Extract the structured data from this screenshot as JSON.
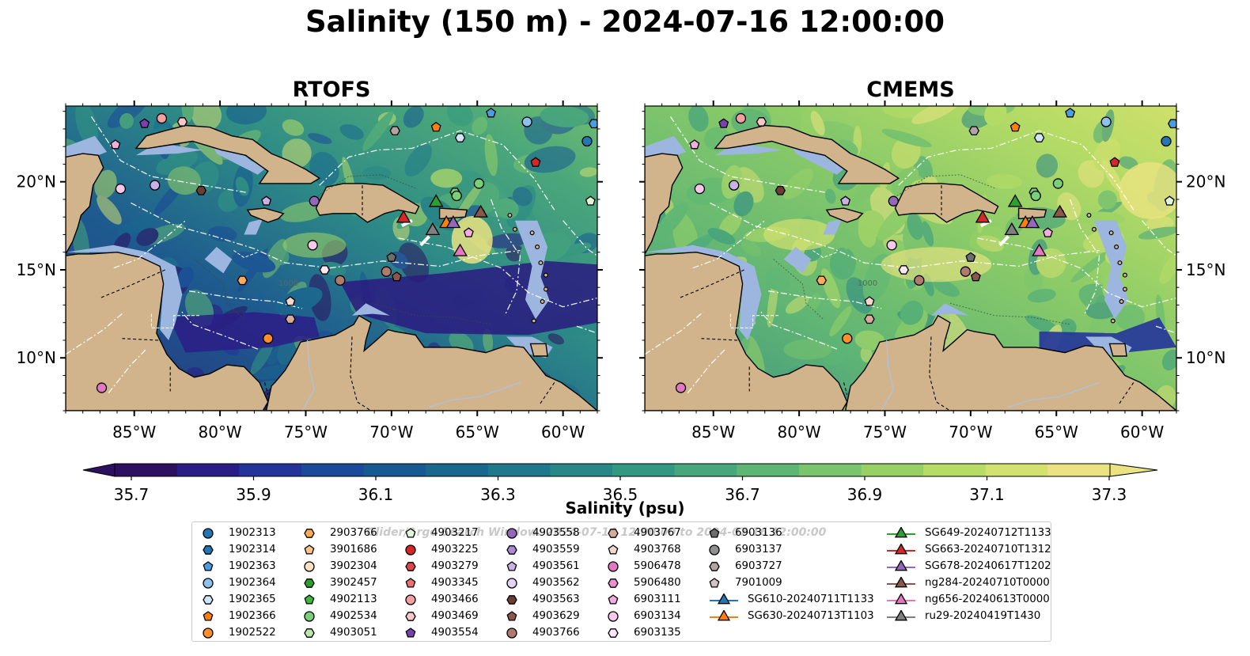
{
  "title": "Salinity (150 m) - 2024-07-16 12:00:00",
  "panels": [
    {
      "title": "RTOFS",
      "mode": "rtofs"
    },
    {
      "title": "CMEMS",
      "mode": "cmems"
    }
  ],
  "axes": {
    "lon_ticks": [
      "85°W",
      "80°W",
      "75°W",
      "70°W",
      "65°W",
      "60°W"
    ],
    "lat_ticks": [
      "20°N",
      "15°N",
      "10°N"
    ],
    "lon_values": [
      -85,
      -80,
      -75,
      -70,
      -65,
      -60
    ],
    "lat_values": [
      20,
      15,
      10
    ],
    "lon_range": [
      -89,
      -58
    ],
    "lat_range": [
      7,
      24.3
    ]
  },
  "map_labels": {
    "isobath": "1000"
  },
  "colors": {
    "land": "#d2b48c",
    "shelf": "#9cb6e0",
    "ocean_low": "#2c1160",
    "ocean_high": "#ebe381"
  },
  "colorbar": {
    "label": "Salinity (psu)",
    "ticks": [
      "35.7",
      "35.9",
      "36.1",
      "36.3",
      "36.5",
      "36.7",
      "36.9",
      "37.1",
      "37.3"
    ],
    "min": 35.7,
    "max": 37.3,
    "extend": "both",
    "colormap": "haline"
  },
  "legend": {
    "watermark": "Glider/Argo Search Window: 2024-07-14 12:00:00 to 2024-07-16 12:00:00",
    "columns": [
      [
        {
          "label": "1902313",
          "marker": "circle",
          "color": "#1f77b4"
        },
        {
          "label": "1902314",
          "marker": "hexagon",
          "color": "#1f77b4"
        },
        {
          "label": "1902363",
          "marker": "pentagon",
          "color": "#4a9de0"
        },
        {
          "label": "1902364",
          "marker": "circle",
          "color": "#8fc1ec"
        },
        {
          "label": "1902365",
          "marker": "hexagon",
          "color": "#d0e6f8"
        },
        {
          "label": "1902366",
          "marker": "pentagon",
          "color": "#ff7f0e"
        },
        {
          "label": "1902522",
          "marker": "circle",
          "color": "#ff8f2a"
        }
      ],
      [
        {
          "label": "2903766",
          "marker": "hexagon",
          "color": "#ffab5a"
        },
        {
          "label": "3901686",
          "marker": "pentagon",
          "color": "#ffc38a"
        },
        {
          "label": "3902304",
          "marker": "circle",
          "color": "#ffe0c0"
        },
        {
          "label": "3902457",
          "marker": "hexagon",
          "color": "#2ca02c"
        },
        {
          "label": "4902113",
          "marker": "pentagon",
          "color": "#3cb83c"
        },
        {
          "label": "4902534",
          "marker": "circle",
          "color": "#78d078"
        },
        {
          "label": "4903051",
          "marker": "hexagon",
          "color": "#b8eab0"
        }
      ],
      [
        {
          "label": "4903217",
          "marker": "pentagon",
          "color": "#dff7d8"
        },
        {
          "label": "4903225",
          "marker": "circle",
          "color": "#d62728"
        },
        {
          "label": "4903279",
          "marker": "hexagon",
          "color": "#e0474a"
        },
        {
          "label": "4903345",
          "marker": "pentagon",
          "color": "#ec6f72"
        },
        {
          "label": "4903466",
          "marker": "circle",
          "color": "#f4a0a0"
        },
        {
          "label": "4903469",
          "marker": "hexagon",
          "color": "#f8c8c8"
        },
        {
          "label": "4903554",
          "marker": "pentagon",
          "color": "#7b3fb0"
        }
      ],
      [
        {
          "label": "4903558",
          "marker": "circle",
          "color": "#9467bd"
        },
        {
          "label": "4903559",
          "marker": "hexagon",
          "color": "#ad8bd4"
        },
        {
          "label": "4903561",
          "marker": "pentagon",
          "color": "#c9b0e6"
        },
        {
          "label": "4903562",
          "marker": "circle",
          "color": "#e2d4f4"
        },
        {
          "label": "4903563",
          "marker": "hexagon",
          "color": "#6b3e33"
        },
        {
          "label": "4903629",
          "marker": "pentagon",
          "color": "#8c564b"
        },
        {
          "label": "4903766",
          "marker": "circle",
          "color": "#b07a6e"
        }
      ],
      [
        {
          "label": "4903767",
          "marker": "hexagon",
          "color": "#d7aa9c"
        },
        {
          "label": "4903768",
          "marker": "pentagon",
          "color": "#f2d7cc"
        },
        {
          "label": "5906478",
          "marker": "circle",
          "color": "#e377c2"
        },
        {
          "label": "5906480",
          "marker": "hexagon",
          "color": "#ea8fcf"
        },
        {
          "label": "6903111",
          "marker": "pentagon",
          "color": "#f2acde"
        },
        {
          "label": "6903134",
          "marker": "circle",
          "color": "#f8c8ea"
        },
        {
          "label": "6903135",
          "marker": "hexagon",
          "color": "#fde6f6"
        }
      ],
      [
        {
          "label": "6903136",
          "marker": "pentagon",
          "color": "#6e6e6e"
        },
        {
          "label": "6903137",
          "marker": "circle",
          "color": "#8f8f8f"
        },
        {
          "label": "6903727",
          "marker": "hexagon",
          "color": "#b3a4a4"
        },
        {
          "label": "7901009",
          "marker": "pentagon",
          "color": "#d3c3c3"
        },
        {
          "label": "SG610-20240711T1133",
          "marker": "triangle",
          "color": "#1f77b4"
        },
        {
          "label": "SG630-20240713T1103",
          "marker": "triangle",
          "color": "#ff7f0e"
        }
      ],
      [
        {
          "label": "SG649-20240712T1133",
          "marker": "triangle",
          "color": "#2ca02c"
        },
        {
          "label": "SG663-20240710T1312",
          "marker": "triangle",
          "color": "#d62728"
        },
        {
          "label": "SG678-20240617T1202",
          "marker": "triangle",
          "color": "#9467bd"
        },
        {
          "label": "ng284-20240710T0000",
          "marker": "triangle",
          "color": "#8c564b"
        },
        {
          "label": "ng656-20240613T0000",
          "marker": "triangle",
          "color": "#e377c2"
        },
        {
          "label": "ru29-20240419T1430",
          "marker": "triangle",
          "color": "#7f7f7f"
        }
      ]
    ]
  },
  "platforms_on_map": [
    {
      "lon": -84.4,
      "lat": 23.3,
      "marker": "pentagon",
      "color": "#7b3fb0"
    },
    {
      "lon": -83.4,
      "lat": 23.6,
      "marker": "circle",
      "color": "#f4a0a0"
    },
    {
      "lon": -82.2,
      "lat": 23.4,
      "marker": "hexagon",
      "color": "#f8c8c8"
    },
    {
      "lon": -86.1,
      "lat": 22.1,
      "marker": "pentagon",
      "color": "#f2acde"
    },
    {
      "lon": -85.8,
      "lat": 19.6,
      "marker": "circle",
      "color": "#f8c8ea"
    },
    {
      "lon": -83.8,
      "lat": 19.8,
      "marker": "circle",
      "color": "#c9b0e6"
    },
    {
      "lon": -81.1,
      "lat": 19.5,
      "marker": "hexagon",
      "color": "#6b3e33"
    },
    {
      "lon": -77.3,
      "lat": 18.9,
      "marker": "pentagon",
      "color": "#c9b0e6"
    },
    {
      "lon": -74.5,
      "lat": 18.9,
      "marker": "circle",
      "color": "#9467bd"
    },
    {
      "lon": -69.8,
      "lat": 22.9,
      "marker": "hexagon",
      "color": "#b3a4a4"
    },
    {
      "lon": -67.4,
      "lat": 23.1,
      "marker": "pentagon",
      "color": "#ff7f0e"
    },
    {
      "lon": -66.0,
      "lat": 22.5,
      "marker": "hexagon",
      "color": "#d0e6f8"
    },
    {
      "lon": -64.2,
      "lat": 23.9,
      "marker": "pentagon",
      "color": "#4a9de0"
    },
    {
      "lon": -62.1,
      "lat": 23.4,
      "marker": "circle",
      "color": "#8fc1ec"
    },
    {
      "lon": -58.2,
      "lat": 23.3,
      "marker": "hexagon",
      "color": "#4a9de0"
    },
    {
      "lon": -58.6,
      "lat": 22.3,
      "marker": "circle",
      "color": "#1f77b4"
    },
    {
      "lon": -61.6,
      "lat": 21.1,
      "marker": "pentagon",
      "color": "#d62728"
    },
    {
      "lon": -66.3,
      "lat": 19.4,
      "marker": "hexagon",
      "color": "#78d078"
    },
    {
      "lon": -66.2,
      "lat": 19.2,
      "marker": "circle",
      "color": "#78d078"
    },
    {
      "lon": -64.9,
      "lat": 19.9,
      "marker": "circle",
      "color": "#78d078"
    },
    {
      "lon": -58.4,
      "lat": 18.9,
      "marker": "pentagon",
      "color": "#dff7d8"
    },
    {
      "lon": -65.5,
      "lat": 17.1,
      "marker": "pentagon",
      "color": "#f2acde"
    },
    {
      "lon": -74.6,
      "lat": 16.4,
      "marker": "circle",
      "color": "#f8c8ea"
    },
    {
      "lon": -73.9,
      "lat": 15.0,
      "marker": "hexagon",
      "color": "#fde6f6"
    },
    {
      "lon": -73.0,
      "lat": 14.4,
      "marker": "circle",
      "color": "#b07a6e"
    },
    {
      "lon": -70.0,
      "lat": 15.7,
      "marker": "pentagon",
      "color": "#6e6e6e"
    },
    {
      "lon": -70.3,
      "lat": 14.9,
      "marker": "circle",
      "color": "#b07a6e"
    },
    {
      "lon": -69.7,
      "lat": 14.6,
      "marker": "pentagon",
      "color": "#8c564b"
    },
    {
      "lon": -78.7,
      "lat": 14.4,
      "marker": "hexagon",
      "color": "#ffab5a"
    },
    {
      "lon": -75.9,
      "lat": 13.2,
      "marker": "pentagon",
      "color": "#f2d7cc"
    },
    {
      "lon": -75.9,
      "lat": 12.2,
      "marker": "hexagon",
      "color": "#d7aa9c"
    },
    {
      "lon": -77.2,
      "lat": 11.1,
      "marker": "circle",
      "color": "#ff8f2a"
    },
    {
      "lon": -86.9,
      "lat": 8.3,
      "marker": "circle",
      "color": "#e377c2"
    }
  ],
  "gliders_on_map": [
    {
      "lon": -67.4,
      "lat": 18.9,
      "color": "#2ca02c"
    },
    {
      "lon": -69.3,
      "lat": 18.0,
      "color": "#d62728"
    },
    {
      "lon": -66.8,
      "lat": 17.7,
      "color": "#ff7f0e"
    },
    {
      "lon": -66.4,
      "lat": 17.7,
      "color": "#9467bd"
    },
    {
      "lon": -64.8,
      "lat": 18.3,
      "color": "#8c564b"
    },
    {
      "lon": -67.6,
      "lat": 17.3,
      "color": "#7f7f7f"
    },
    {
      "lon": -66.0,
      "lat": 16.1,
      "color": "#e377c2"
    }
  ]
}
